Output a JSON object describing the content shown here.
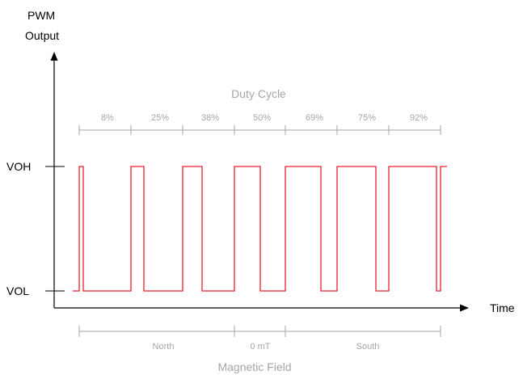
{
  "y_axis_label_line1": "PWM",
  "y_axis_label_line2": "Output",
  "x_axis_label": "Time",
  "level_high_label": "VOH",
  "level_low_label": "VOL",
  "duty_cycle_title": "Duty Cycle",
  "duty_cycles": [
    "8%",
    "25%",
    "38%",
    "50%",
    "69%",
    "75%",
    "92%"
  ],
  "magnetic_field_title": "Magnetic Field",
  "field_regions": [
    "North",
    "0 mT",
    "South"
  ],
  "colors": {
    "signal": "#e8212b",
    "annotation": "#a6a6a6",
    "axis": "#000000"
  }
}
